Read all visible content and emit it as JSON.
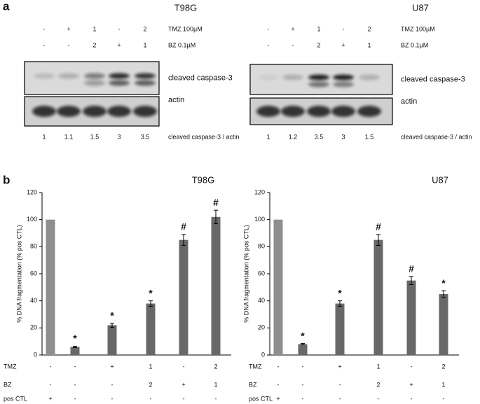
{
  "panel_a": {
    "label": "a",
    "blots": [
      {
        "title": "T98G",
        "tmz_label": "TMZ 100µM",
        "bz_label": "BZ 0.1µM",
        "tmz": [
          "-",
          "+",
          "1",
          "-",
          "2"
        ],
        "bz": [
          "-",
          "-",
          "2",
          "+",
          "1"
        ],
        "bands": [
          "cleaved caspase-3",
          "actin"
        ],
        "ratios": [
          1,
          1.1,
          1.5,
          3,
          3.5
        ],
        "ratio_label": "cleaved caspase-3 / actin"
      },
      {
        "title": "U87",
        "tmz_label": "TMZ 100µM",
        "bz_label": "BZ 0.1µM",
        "tmz": [
          "-",
          "+",
          "1",
          "-",
          "2"
        ],
        "bz": [
          "-",
          "-",
          "2",
          "+",
          "1"
        ],
        "bands": [
          "cleaved caspase-3",
          "actin"
        ],
        "ratios": [
          1,
          1.2,
          3.5,
          3,
          1.5
        ],
        "ratio_label": "cleaved caspase-3 / actin"
      }
    ]
  },
  "panel_b_label": "b",
  "chart_data": [
    {
      "type": "bar",
      "title": "T98G",
      "y_label": "% DNA fragmentation (% pos CTL)",
      "values": [
        100,
        6,
        22,
        38,
        85,
        102
      ],
      "errors": [
        0,
        0.5,
        1.5,
        2,
        4,
        5
      ],
      "annotations": [
        null,
        "*",
        "*",
        "*",
        "#",
        "#"
      ],
      "colors": [
        "#8e8e8e",
        "#686868",
        "#686868",
        "#686868",
        "#686868",
        "#686868"
      ],
      "ylim": [
        0,
        120
      ],
      "yticks": [
        0,
        20,
        40,
        60,
        80,
        100,
        120
      ],
      "treatment_rows": [
        {
          "name": "TMZ",
          "values": [
            "-",
            "-",
            "+",
            "1",
            "-",
            "2"
          ]
        },
        {
          "name": "BZ",
          "values": [
            "-",
            "-",
            "-",
            "2",
            "+",
            "1"
          ]
        },
        {
          "name": "pos CTL",
          "values": [
            "+",
            "-",
            "-",
            "-",
            "-",
            "-"
          ]
        }
      ]
    },
    {
      "type": "bar",
      "title": "U87",
      "y_label": "% DNA fragmentation (% pos CTL)",
      "values": [
        100,
        8,
        38,
        85,
        55,
        45
      ],
      "errors": [
        0,
        0.5,
        2,
        4,
        3,
        2.5
      ],
      "annotations": [
        null,
        "*",
        "*",
        "#",
        "#",
        "*"
      ],
      "colors": [
        "#8e8e8e",
        "#686868",
        "#686868",
        "#686868",
        "#686868",
        "#686868"
      ],
      "ylim": [
        0,
        120
      ],
      "yticks": [
        0,
        20,
        40,
        60,
        80,
        100,
        120
      ],
      "treatment_rows": [
        {
          "name": "TMZ",
          "values": [
            "-",
            "-",
            "+",
            "1",
            "-",
            "2"
          ]
        },
        {
          "name": "BZ",
          "values": [
            "-",
            "-",
            "-",
            "2",
            "+",
            "1"
          ]
        },
        {
          "name": "pos CTL",
          "values": [
            "+",
            "-",
            "-",
            "-",
            "-",
            "-"
          ]
        }
      ]
    }
  ]
}
